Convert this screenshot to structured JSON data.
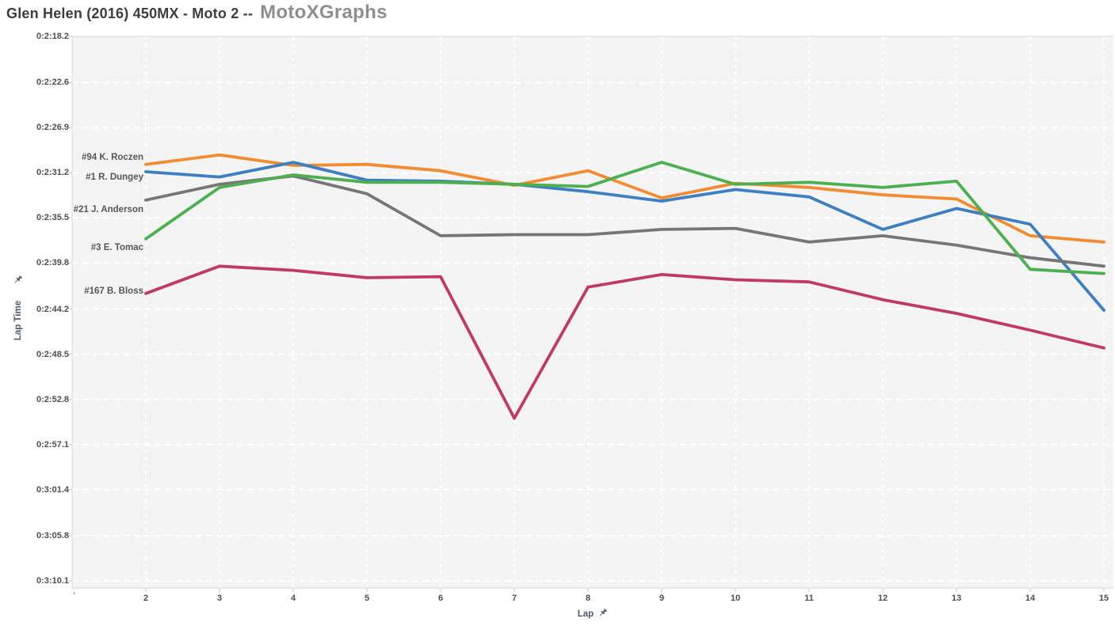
{
  "header": {
    "title_event": "Glen Helen (2016) 450MX - Moto 2 --",
    "brand": "MotoXGraphs"
  },
  "colors": {
    "plot_bg": "#f4f4f4",
    "grid": "#ffffff",
    "border": "#d9d9d9",
    "tick_mark": "#c9c9c9",
    "tick_label": "#4e4e4e",
    "axis_title": "#4e5d6c",
    "series_label": "#565656",
    "title": "#3d3d3d",
    "brand": "#8e8e8e"
  },
  "chart_data": {
    "type": "line",
    "title": "Glen Helen (2016) 450MX - Moto 2 -- MotoXGraphs",
    "xlabel": "Lap",
    "ylabel": "Lap Time",
    "x": [
      2,
      3,
      4,
      5,
      6,
      7,
      8,
      9,
      10,
      11,
      12,
      13,
      14,
      15
    ],
    "x_axis_ticks": [
      "2",
      "3",
      "4",
      "5",
      "6",
      "7",
      "8",
      "9",
      "10",
      "11",
      "12",
      "13",
      "14",
      "15"
    ],
    "x_axis_clipped_first_label": "´",
    "x_range": [
      1,
      15.14
    ],
    "y_axis_ticks": [
      {
        "label": "0:2:18.2",
        "seconds": 138.2
      },
      {
        "label": "0:2:22.6",
        "seconds": 142.6
      },
      {
        "label": "0:2:26.9",
        "seconds": 146.9
      },
      {
        "label": "0:2:31.2",
        "seconds": 151.2
      },
      {
        "label": "0:2:35.5",
        "seconds": 155.5
      },
      {
        "label": "0:2:39.8",
        "seconds": 159.8
      },
      {
        "label": "0:2:44.2",
        "seconds": 164.2
      },
      {
        "label": "0:2:48.5",
        "seconds": 168.5
      },
      {
        "label": "0:2:52.8",
        "seconds": 172.8
      },
      {
        "label": "0:2:57.1",
        "seconds": 177.1
      },
      {
        "label": "0:3:01.4",
        "seconds": 181.4
      },
      {
        "label": "0:3:05.8",
        "seconds": 185.8
      },
      {
        "label": "0:3:10.1",
        "seconds": 190.1
      }
    ],
    "y_range_seconds": [
      138.2,
      190.1
    ],
    "y_axis_direction": "time increases downward",
    "grid": "white dashed gridlines on light gray panel",
    "legend_position": "inline labels left of series start",
    "series": [
      {
        "name": "#94 K. Roczen",
        "color": "#f28b31",
        "seconds": [
          150.4,
          149.5,
          150.5,
          150.4,
          151.0,
          152.4,
          151.0,
          153.6,
          152.2,
          152.6,
          153.3,
          153.7,
          157.2,
          157.8
        ]
      },
      {
        "name": "#1 R. Dungey",
        "color": "#3e7fc1",
        "seconds": [
          151.1,
          151.6,
          150.2,
          151.9,
          152.0,
          152.3,
          153.0,
          153.9,
          152.8,
          153.5,
          156.6,
          154.6,
          156.1,
          164.3
        ]
      },
      {
        "name": "#21 J. Anderson",
        "color": "#767676",
        "seconds": [
          153.8,
          152.3,
          151.5,
          153.2,
          157.2,
          157.1,
          157.1,
          156.6,
          156.5,
          157.8,
          157.2,
          158.1,
          159.3,
          160.1
        ]
      },
      {
        "name": "#3 E. Tomac",
        "color": "#4caf50",
        "seconds": [
          157.5,
          152.6,
          151.4,
          152.1,
          152.1,
          152.3,
          152.5,
          150.2,
          152.3,
          152.1,
          152.6,
          152.0,
          160.4,
          160.8
        ]
      },
      {
        "name": "#167 B. Bloss",
        "color": "#c03969",
        "seconds": [
          162.7,
          160.1,
          160.5,
          161.2,
          161.1,
          174.6,
          162.1,
          160.9,
          161.4,
          161.6,
          163.3,
          164.6,
          166.2,
          167.9
        ]
      }
    ]
  }
}
